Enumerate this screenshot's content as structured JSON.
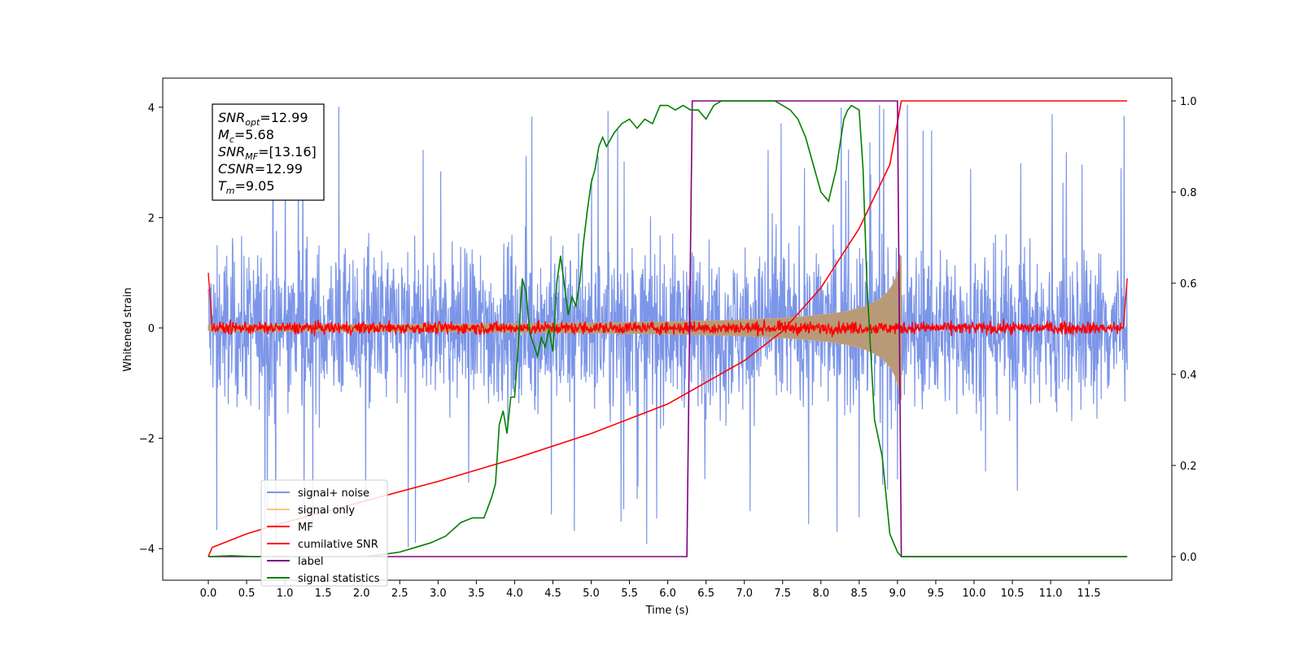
{
  "chart_data": {
    "type": "line",
    "xlabel": "Time (s)",
    "ylabel_left": "Whitened strain",
    "ylabel_right": "",
    "xlim": [
      -0.6,
      12.6
    ],
    "ylim_left": [
      -4.55,
      4.55
    ],
    "ylim_right": [
      -0.045,
      1.045
    ],
    "grid": false,
    "legend_position": "lower-left",
    "x_ticks": [
      "0.0",
      "0.5",
      "1.0",
      "1.5",
      "2.0",
      "2.5",
      "3.0",
      "3.5",
      "4.0",
      "4.5",
      "5.0",
      "5.5",
      "6.0",
      "6.5",
      "7.0",
      "7.5",
      "8.0",
      "8.5",
      "9.0",
      "9.5",
      "10.0",
      "10.5",
      "11.0",
      "11.5"
    ],
    "y_ticks_left": [
      "4",
      "2",
      "0",
      "−2",
      "−4"
    ],
    "y_ticks_right": [
      "1.0",
      "0.8",
      "0.6",
      "0.4",
      "0.2",
      "0.0"
    ],
    "annotation": {
      "lines": [
        {
          "sym": "SNR",
          "sub": "opt",
          "rest": "=12.99"
        },
        {
          "sym": "M",
          "sub": "c",
          "rest": "=5.68"
        },
        {
          "sym": "SNR",
          "sub": "MF",
          "rest": "=[13.16]"
        },
        {
          "sym": "CSNR",
          "sub": "",
          "rest": "=12.99"
        },
        {
          "sym": "T",
          "sub": "m",
          "rest": "=9.05"
        }
      ]
    },
    "series": [
      {
        "name": "signal+ noise",
        "axis": "left",
        "color": "#7b95e8",
        "kind": "noise",
        "x_range": [
          0,
          12
        ],
        "amplitude": 1.0,
        "spike_max": 4.1
      },
      {
        "name": "signal only",
        "axis": "left",
        "color": "#f5c77a",
        "kind": "chirp",
        "x_range": [
          0,
          9.05
        ],
        "amplitude_end": 1.3
      },
      {
        "name": "MF",
        "axis": "left",
        "color": "#ff0000",
        "kind": "mf",
        "x_range": [
          0,
          12
        ],
        "amplitude": 0.08,
        "edge_start": 1.0,
        "edge_end": 0.9
      },
      {
        "name": "cumilative SNR",
        "axis": "right",
        "color": "#ff0000",
        "x": [
          0,
          0.05,
          0.5,
          1.0,
          2.0,
          3.0,
          4.0,
          5.0,
          6.0,
          7.0,
          7.5,
          8.0,
          8.5,
          8.9,
          9.05,
          12.0
        ],
        "y": [
          0.0,
          0.02,
          0.05,
          0.075,
          0.12,
          0.165,
          0.215,
          0.27,
          0.335,
          0.43,
          0.495,
          0.59,
          0.72,
          0.86,
          1.0,
          1.0
        ]
      },
      {
        "name": "label",
        "axis": "right",
        "color": "#800080",
        "x": [
          0,
          6.25,
          6.32,
          9.0,
          9.05,
          12.0
        ],
        "y": [
          0,
          0,
          1,
          1,
          0,
          0
        ]
      },
      {
        "name": "signal statistics",
        "axis": "right",
        "color": "#008000",
        "x": [
          0,
          0.3,
          0.6,
          1.0,
          1.5,
          2.0,
          2.3,
          2.5,
          2.7,
          2.9,
          3.1,
          3.3,
          3.45,
          3.6,
          3.7,
          3.75,
          3.8,
          3.85,
          3.9,
          3.95,
          4.0,
          4.05,
          4.1,
          4.15,
          4.2,
          4.3,
          4.35,
          4.4,
          4.45,
          4.5,
          4.55,
          4.6,
          4.7,
          4.75,
          4.8,
          4.85,
          4.9,
          4.95,
          5.0,
          5.05,
          5.1,
          5.15,
          5.2,
          5.3,
          5.4,
          5.5,
          5.6,
          5.7,
          5.8,
          5.9,
          6.0,
          6.1,
          6.2,
          6.3,
          6.4,
          6.5,
          6.6,
          6.7,
          6.8,
          6.9,
          7.0,
          7.2,
          7.4,
          7.5,
          7.6,
          7.7,
          7.8,
          7.9,
          8.0,
          8.1,
          8.2,
          8.3,
          8.35,
          8.4,
          8.5,
          8.55,
          8.6,
          8.65,
          8.7,
          8.8,
          8.9,
          9.0,
          9.05,
          12.0
        ],
        "y": [
          0,
          0.002,
          0.0,
          0.0,
          0.0,
          0.0,
          0.005,
          0.01,
          0.02,
          0.03,
          0.045,
          0.075,
          0.085,
          0.085,
          0.13,
          0.16,
          0.29,
          0.32,
          0.27,
          0.35,
          0.35,
          0.47,
          0.61,
          0.58,
          0.49,
          0.44,
          0.48,
          0.46,
          0.5,
          0.45,
          0.6,
          0.66,
          0.53,
          0.57,
          0.55,
          0.6,
          0.69,
          0.76,
          0.82,
          0.85,
          0.9,
          0.92,
          0.9,
          0.93,
          0.95,
          0.96,
          0.94,
          0.96,
          0.95,
          0.99,
          0.99,
          0.98,
          0.99,
          0.98,
          0.98,
          0.96,
          0.99,
          1.0,
          1.0,
          1.0,
          1.0,
          1.0,
          1.0,
          0.99,
          0.98,
          0.96,
          0.92,
          0.86,
          0.8,
          0.78,
          0.85,
          0.96,
          0.98,
          0.99,
          0.98,
          0.85,
          0.6,
          0.45,
          0.3,
          0.22,
          0.05,
          0.01,
          0.0,
          0.0
        ]
      }
    ]
  }
}
